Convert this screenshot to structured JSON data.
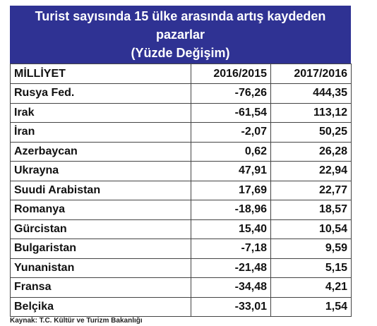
{
  "header": {
    "title_lines": [
      "Turist sayısında 15 ülke arasında artış kaydeden",
      "pazarlar",
      "(Yüzde Değişim)"
    ]
  },
  "table": {
    "columns": [
      "MİLLİYET",
      "2016/2015",
      "2017/2016"
    ],
    "rows": [
      [
        "Rusya Fed.",
        "-76,26",
        "444,35"
      ],
      [
        "Irak",
        "-61,54",
        "113,12"
      ],
      [
        "İran",
        "-2,07",
        "50,25"
      ],
      [
        "Azerbaycan",
        "0,62",
        "26,28"
      ],
      [
        "Ukrayna",
        "47,91",
        "22,94"
      ],
      [
        "Suudi Arabistan",
        "17,69",
        "22,77"
      ],
      [
        "Romanya",
        "-18,96",
        "18,57"
      ],
      [
        "Gürcistan",
        "15,40",
        "10,54"
      ],
      [
        "Bulgaristan",
        "-7,18",
        "9,59"
      ],
      [
        "Yunanistan",
        "-21,48",
        "5,15"
      ],
      [
        "Fransa",
        "-34,48",
        "4,21"
      ],
      [
        "Belçika",
        "-33,01",
        "1,54"
      ]
    ]
  },
  "source": "Kaynak: T.C. Kültür ve Turizm Bakanlığı"
}
